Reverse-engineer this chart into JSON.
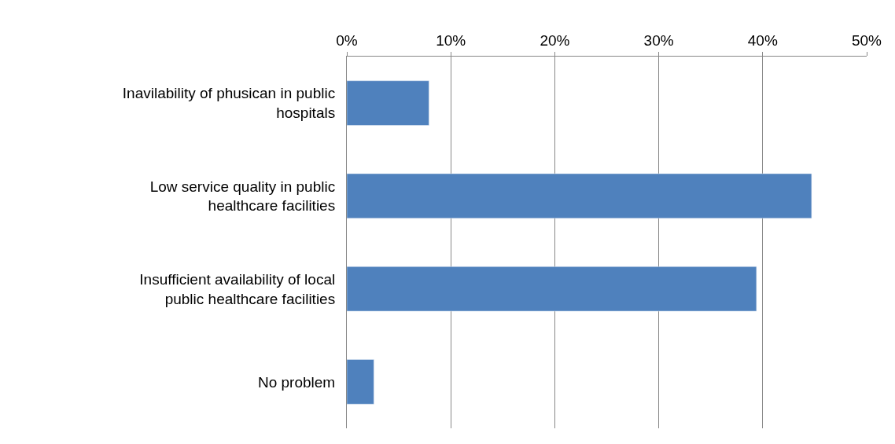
{
  "chart_data": {
    "type": "bar",
    "orientation": "horizontal",
    "categories": [
      "Inavilability of phusican in public hospitals",
      "Low service quality in public healthcare facilities",
      "Insufficient availability of local public healthcare facilities",
      "No problem"
    ],
    "values": [
      0.079,
      0.447,
      0.394,
      0.026
    ],
    "color": "#4f81bd",
    "xlim": [
      0,
      0.5
    ],
    "xticks": [
      {
        "value": 0,
        "label": "0%"
      },
      {
        "value": 0.1,
        "label": "10%"
      },
      {
        "value": 0.2,
        "label": "20%"
      },
      {
        "value": 0.3,
        "label": "30%"
      },
      {
        "value": 0.4,
        "label": "40%"
      },
      {
        "value": 0.5,
        "label": "50%"
      }
    ],
    "grid": "x"
  }
}
